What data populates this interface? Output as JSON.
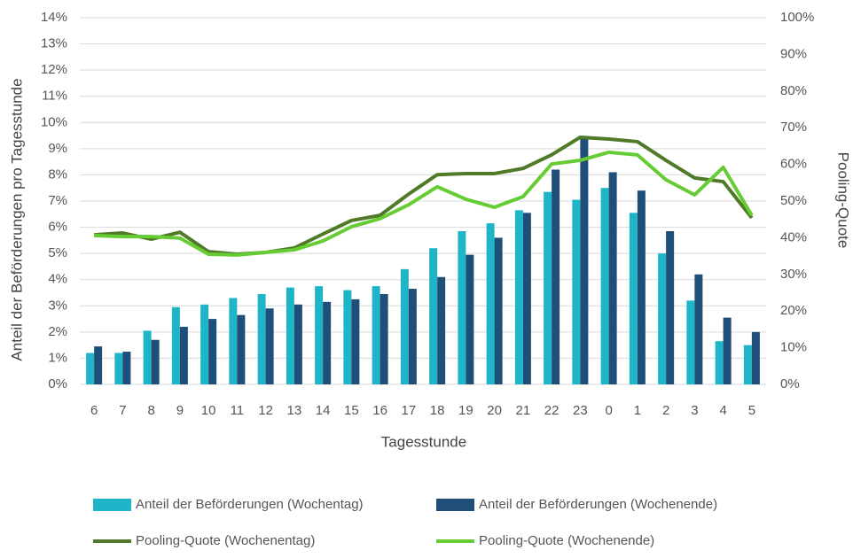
{
  "chart_data": {
    "type": "bar",
    "categories": [
      "6",
      "7",
      "8",
      "9",
      "10",
      "11",
      "12",
      "13",
      "14",
      "15",
      "16",
      "17",
      "18",
      "19",
      "20",
      "21",
      "22",
      "23",
      "0",
      "1",
      "2",
      "3",
      "4",
      "5"
    ],
    "xlabel": "Tagesstunde",
    "ylabel": "Anteil der Beförderungen pro Tagesstunde",
    "y2label": "Pooling-Quote",
    "ylim": [
      0,
      14
    ],
    "yticks": [
      {
        "value": 0,
        "label": "0%"
      },
      {
        "value": 1,
        "label": "1%"
      },
      {
        "value": 2,
        "label": "2%"
      },
      {
        "value": 3,
        "label": "3%"
      },
      {
        "value": 4,
        "label": "4%"
      },
      {
        "value": 5,
        "label": "5%"
      },
      {
        "value": 6,
        "label": "6%"
      },
      {
        "value": 7,
        "label": "7%"
      },
      {
        "value": 8,
        "label": "8%"
      },
      {
        "value": 9,
        "label": "9%"
      },
      {
        "value": 10,
        "label": "10%"
      },
      {
        "value": 11,
        "label": "11%"
      },
      {
        "value": 12,
        "label": "12%"
      },
      {
        "value": 13,
        "label": "13%"
      },
      {
        "value": 14,
        "label": "14%"
      }
    ],
    "y2lim": [
      0,
      100
    ],
    "y2ticks": [
      {
        "value": 0,
        "label": "0%"
      },
      {
        "value": 10,
        "label": "10%"
      },
      {
        "value": 20,
        "label": "20%"
      },
      {
        "value": 30,
        "label": "30%"
      },
      {
        "value": 40,
        "label": "40%"
      },
      {
        "value": 50,
        "label": "50%"
      },
      {
        "value": 60,
        "label": "60%"
      },
      {
        "value": 70,
        "label": "70%"
      },
      {
        "value": 80,
        "label": "80%"
      },
      {
        "value": 90,
        "label": "90%"
      },
      {
        "value": 100,
        "label": "100%"
      }
    ],
    "grid": true,
    "legend": "bottom",
    "series": [
      {
        "name": "Anteil der Beförderungen (Wochentag)",
        "type": "bar",
        "color": "#1fb5c9",
        "values": [
          1.2,
          1.2,
          2.05,
          2.95,
          3.05,
          3.3,
          3.45,
          3.7,
          3.75,
          3.6,
          3.75,
          4.4,
          5.2,
          5.85,
          6.15,
          6.65,
          7.35,
          7.05,
          7.5,
          6.55,
          5.0,
          3.2,
          1.65,
          1.5
        ]
      },
      {
        "name": "Anteil der Beförderungen (Wochenende)",
        "type": "bar",
        "color": "#1f4e79",
        "values": [
          1.45,
          1.25,
          1.7,
          2.2,
          2.5,
          2.65,
          2.9,
          3.05,
          3.15,
          3.25,
          3.45,
          3.65,
          4.1,
          4.95,
          5.6,
          6.55,
          8.2,
          9.4,
          8.1,
          7.4,
          5.85,
          4.2,
          2.55,
          2.0
        ]
      },
      {
        "name": "Pooling-Quote (Wochenentag)",
        "type": "line",
        "axis": "y2",
        "color": "#4f7a28",
        "values": [
          40.8,
          41.3,
          39.6,
          41.5,
          36.2,
          35.5,
          36,
          37.2,
          41,
          44.7,
          46.1,
          51.9,
          57.2,
          57.5,
          57.5,
          58.9,
          62.6,
          67.4,
          66.9,
          66.2,
          61.1,
          56.3,
          55.3,
          45.4
        ]
      },
      {
        "name": "Pooling-Quote (Wochenende)",
        "type": "line",
        "axis": "y2",
        "color": "#66cc33",
        "values": [
          40.6,
          40.3,
          40.3,
          39.9,
          35.5,
          35.3,
          36,
          36.7,
          39.1,
          43,
          45.2,
          49,
          53.9,
          50.5,
          48.3,
          51.2,
          60.1,
          61.1,
          63.3,
          62.6,
          55.8,
          51.7,
          59.2,
          46.1
        ]
      }
    ]
  }
}
